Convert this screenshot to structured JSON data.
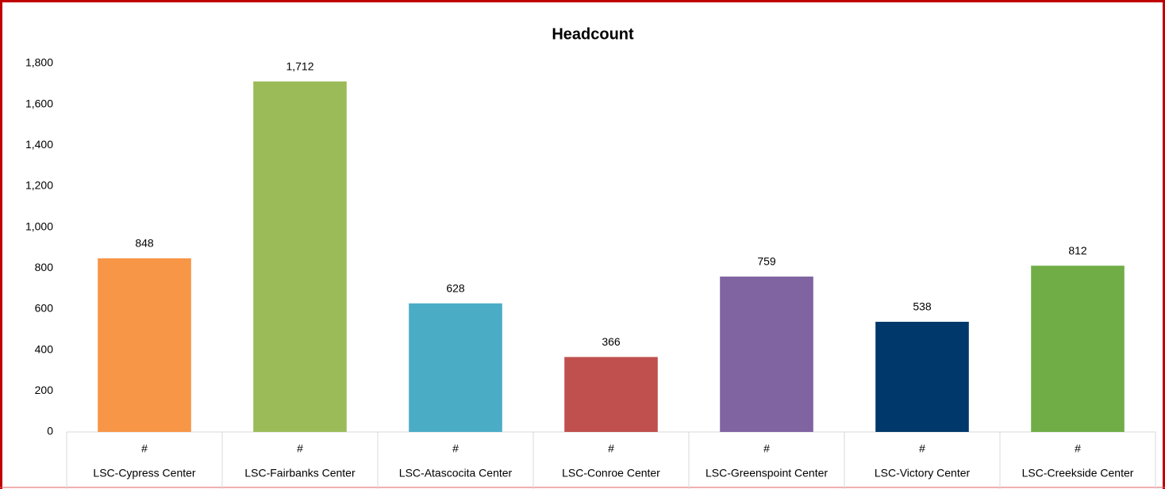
{
  "chart_data": {
    "type": "bar",
    "title": "Headcount",
    "categories": [
      "LSC-Cypress Center",
      "LSC-Fairbanks Center",
      "LSC-Atascocita Center",
      "LSC-Conroe Center",
      "LSC-Greenspoint Center",
      "LSC-Victory Center",
      "LSC-Creekside Center"
    ],
    "subcategories": [
      "#",
      "#",
      "#",
      "#",
      "#",
      "#",
      "#"
    ],
    "values": [
      848,
      1712,
      628,
      366,
      759,
      538,
      812
    ],
    "value_labels": [
      "848",
      "1,712",
      "628",
      "366",
      "759",
      "538",
      "812"
    ],
    "colors": [
      "#f79646",
      "#9bbb59",
      "#4bacc6",
      "#c0504d",
      "#8064a2",
      "#00386b",
      "#70ad47"
    ],
    "ylim": [
      0,
      1800
    ],
    "yticks": [
      0,
      200,
      400,
      600,
      800,
      {
        "value": 1000,
        "label": "1,000"
      },
      {
        "value": 1200,
        "label": "1,200"
      },
      {
        "value": 1400,
        "label": "1,400"
      },
      {
        "value": 1600,
        "label": "1,600"
      },
      {
        "value": 1800,
        "label": "1,800"
      }
    ],
    "grid": false
  }
}
